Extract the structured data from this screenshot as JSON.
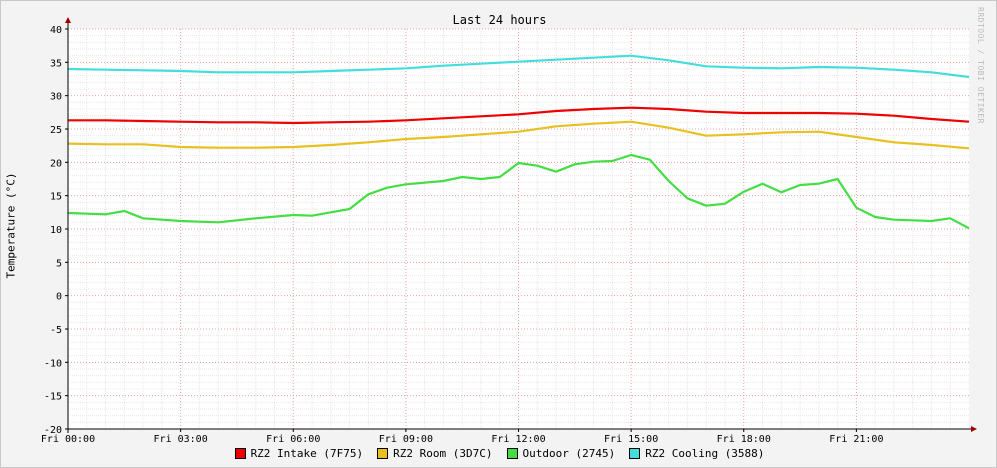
{
  "chart_data": {
    "type": "line",
    "title": "Last 24 hours",
    "ylabel": "Temperature (°C)",
    "watermark": "RRDTOOL / TOBI OETIKER",
    "ylim": [
      -20,
      40
    ],
    "y_ticks": [
      40,
      35,
      30,
      25,
      20,
      15,
      10,
      5,
      0,
      -5,
      -10,
      -15,
      -20
    ],
    "x_range_hours": [
      0,
      24
    ],
    "x_ticks": [
      {
        "hour": 0,
        "label": "Fri 00:00"
      },
      {
        "hour": 3,
        "label": "Fri 03:00"
      },
      {
        "hour": 6,
        "label": "Fri 06:00"
      },
      {
        "hour": 9,
        "label": "Fri 09:00"
      },
      {
        "hour": 12,
        "label": "Fri 12:00"
      },
      {
        "hour": 15,
        "label": "Fri 15:00"
      },
      {
        "hour": 18,
        "label": "Fri 18:00"
      },
      {
        "hour": 21,
        "label": "Fri 21:00"
      }
    ],
    "grid": true,
    "legend_position": "bottom",
    "series": [
      {
        "name": "RZ2 Intake (7F75)",
        "color": "#ee0000",
        "x": [
          0,
          1,
          2,
          3,
          4,
          5,
          6,
          7,
          8,
          9,
          10,
          11,
          12,
          13,
          14,
          15,
          16,
          17,
          18,
          19,
          20,
          21,
          22,
          23,
          24
        ],
        "y": [
          26.3,
          26.3,
          26.2,
          26.1,
          26.0,
          26.0,
          25.9,
          26.0,
          26.1,
          26.3,
          26.6,
          26.9,
          27.2,
          27.7,
          28.0,
          28.2,
          28.0,
          27.6,
          27.4,
          27.4,
          27.4,
          27.3,
          27.0,
          26.5,
          26.1
        ]
      },
      {
        "name": "RZ2 Room (3D7C)",
        "color": "#e8c020",
        "x": [
          0,
          1,
          2,
          3,
          4,
          5,
          6,
          7,
          8,
          9,
          10,
          11,
          12,
          13,
          14,
          15,
          16,
          17,
          18,
          19,
          20,
          21,
          22,
          23,
          24
        ],
        "y": [
          22.8,
          22.7,
          22.7,
          22.3,
          22.2,
          22.2,
          22.3,
          22.6,
          23.0,
          23.5,
          23.8,
          24.2,
          24.6,
          25.4,
          25.8,
          26.1,
          25.2,
          24.0,
          24.2,
          24.5,
          24.6,
          23.8,
          23.0,
          22.6,
          22.1
        ]
      },
      {
        "name": "Outdoor (2745)",
        "color": "#44dd44",
        "x": [
          0,
          1,
          1.5,
          2,
          3,
          4,
          5,
          6,
          6.5,
          7,
          7.5,
          8,
          8.5,
          9,
          10,
          10.5,
          11,
          11.5,
          12,
          12.5,
          13,
          13.5,
          14,
          14.5,
          15,
          15.5,
          16,
          16.5,
          17,
          17.5,
          18,
          18.5,
          19,
          19.5,
          20,
          20.5,
          21,
          21.5,
          22,
          22.5,
          23,
          23.5,
          24
        ],
        "y": [
          12.4,
          12.2,
          12.7,
          11.6,
          11.2,
          11.0,
          11.6,
          12.1,
          12.0,
          12.5,
          13.0,
          15.2,
          16.2,
          16.7,
          17.2,
          17.8,
          17.5,
          17.8,
          19.9,
          19.5,
          18.6,
          19.7,
          20.1,
          20.2,
          21.1,
          20.4,
          17.2,
          14.6,
          13.5,
          13.8,
          15.6,
          16.8,
          15.5,
          16.6,
          16.8,
          17.5,
          13.2,
          11.8,
          11.4,
          11.3,
          11.2,
          11.6,
          10.1
        ]
      },
      {
        "name": "RZ2 Cooling (3588)",
        "color": "#44dddd",
        "x": [
          0,
          1,
          2,
          3,
          4,
          5,
          6,
          7,
          8,
          9,
          10,
          11,
          12,
          13,
          14,
          15,
          16,
          17,
          18,
          19,
          20,
          21,
          22,
          23,
          24
        ],
        "y": [
          34.0,
          33.9,
          33.8,
          33.7,
          33.5,
          33.5,
          33.5,
          33.7,
          33.9,
          34.1,
          34.5,
          34.8,
          35.1,
          35.4,
          35.7,
          36.0,
          35.3,
          34.4,
          34.2,
          34.1,
          34.3,
          34.2,
          33.9,
          33.5,
          32.8
        ]
      }
    ]
  }
}
